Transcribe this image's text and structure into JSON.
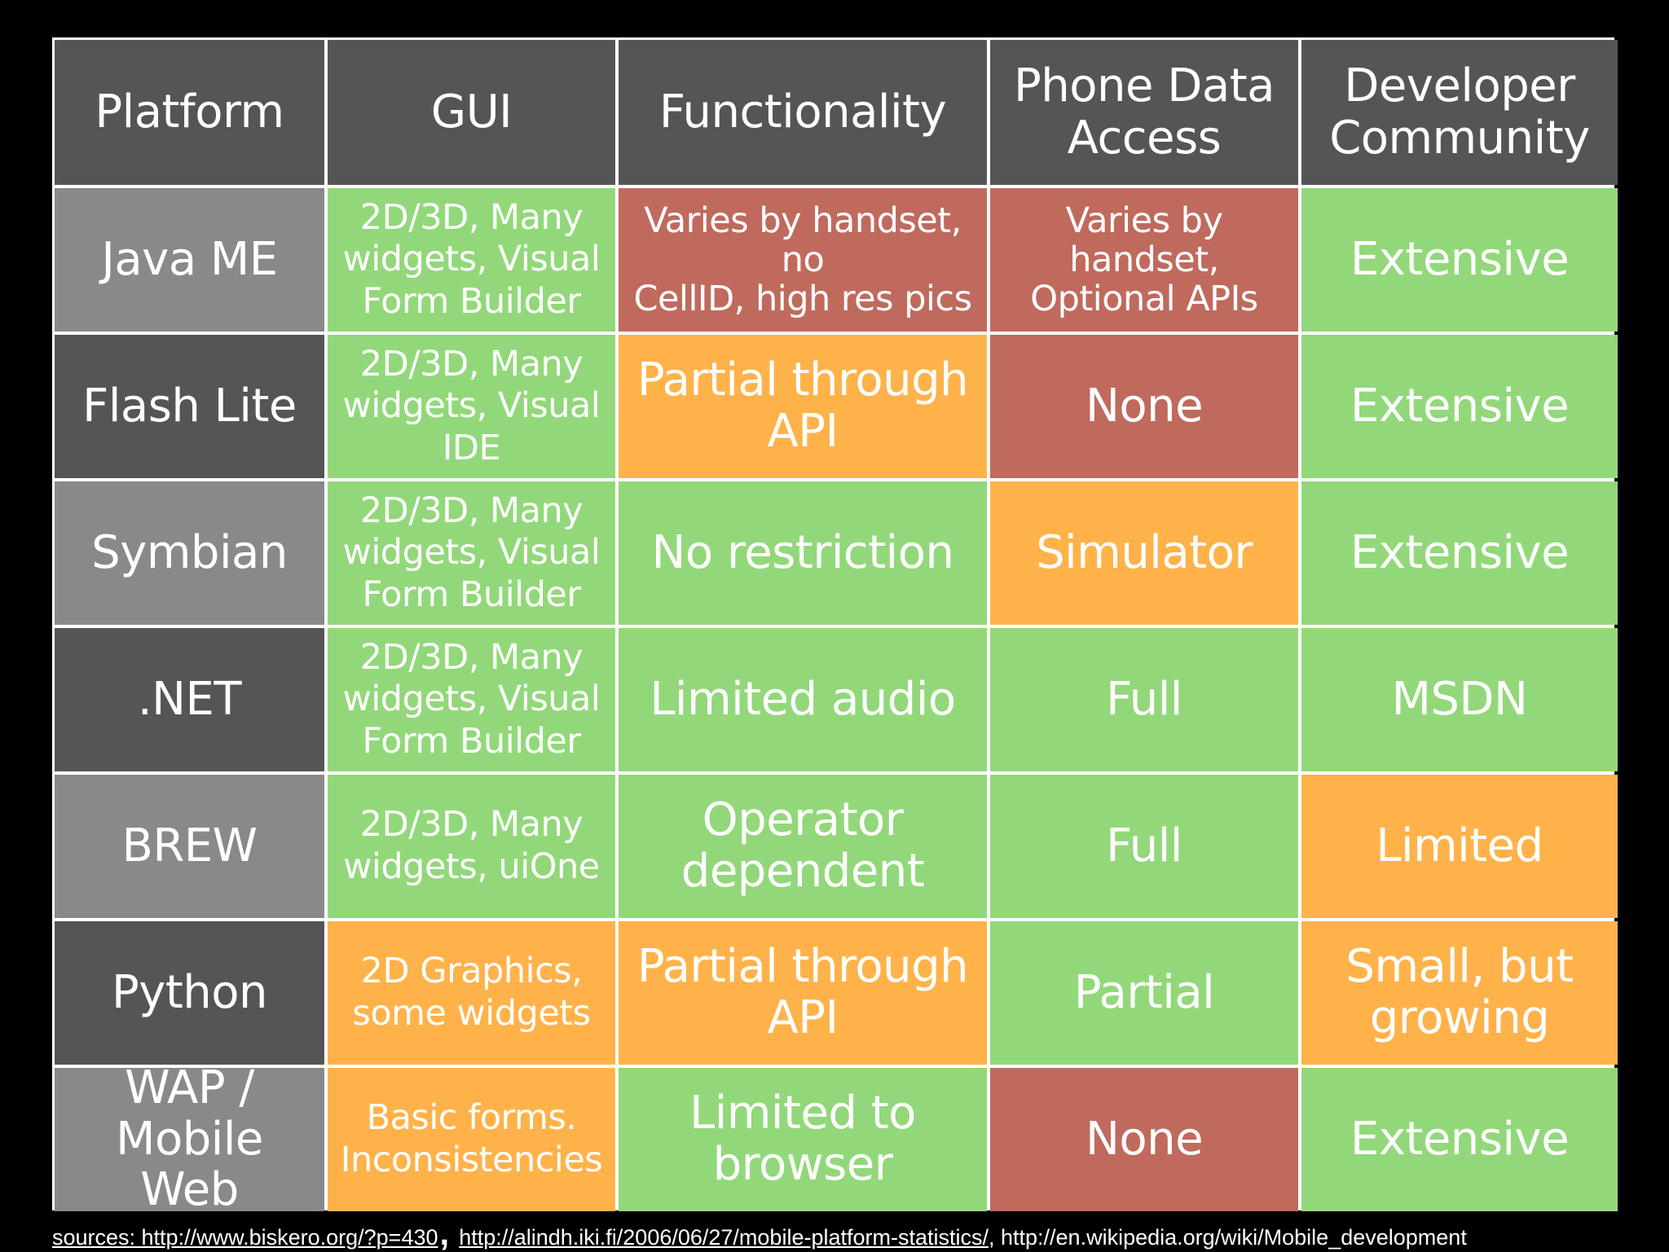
{
  "table": {
    "headers": [
      "Platform",
      "GUI",
      "Functionality",
      "Phone Data\nAccess",
      "Developer\nCommunity"
    ],
    "rows": [
      {
        "platform": "Java ME",
        "gui": "2D/3D, Many\nwidgets, Visual\nForm Builder",
        "functionality": "Varies by handset, no\nCellID, high res pics",
        "phone_data_access": "Varies by handset,\nOptional APIs",
        "developer_community": "Extensive"
      },
      {
        "platform": "Flash Lite",
        "gui": "2D/3D, Many\nwidgets, Visual\nIDE",
        "functionality": "Partial through\nAPI",
        "phone_data_access": "None",
        "developer_community": "Extensive"
      },
      {
        "platform": "Symbian",
        "gui": "2D/3D, Many\nwidgets, Visual\nForm Builder",
        "functionality": "No restriction",
        "phone_data_access": "Simulator",
        "developer_community": "Extensive"
      },
      {
        "platform": ".NET",
        "gui": "2D/3D, Many\nwidgets, Visual\nForm Builder",
        "functionality": "Limited audio",
        "phone_data_access": "Full",
        "developer_community": "MSDN"
      },
      {
        "platform": "BREW",
        "gui": "2D/3D, Many\nwidgets, uiOne",
        "functionality": "Operator\ndependent",
        "phone_data_access": "Full",
        "developer_community": "Limited"
      },
      {
        "platform": "Python",
        "gui": "2D Graphics,\nsome widgets",
        "functionality": "Partial through\nAPI",
        "phone_data_access": "Partial",
        "developer_community": "Small, but\ngrowing"
      },
      {
        "platform": "WAP /\nMobile Web",
        "gui": "Basic forms.\nInconsistencies",
        "functionality": "Limited to\nbrowser",
        "phone_data_access": "None",
        "developer_community": "Extensive"
      }
    ]
  },
  "sources": {
    "link1": "sources: http://www.biskero.org/?p=430",
    "separator": ",",
    "link2": "http://alindh.iki.fi/2006/06/27/mobile-platform-statistics/",
    "link3": ", http://en.wikipedia.org/wiki/Mobile_development"
  },
  "colors": {
    "header_bg": "#555555",
    "platform_light": "#888a8a",
    "platform_dark": "#555555",
    "good": "#92d87a",
    "medium": "#ffb24a",
    "poor": "#c06a5e"
  }
}
